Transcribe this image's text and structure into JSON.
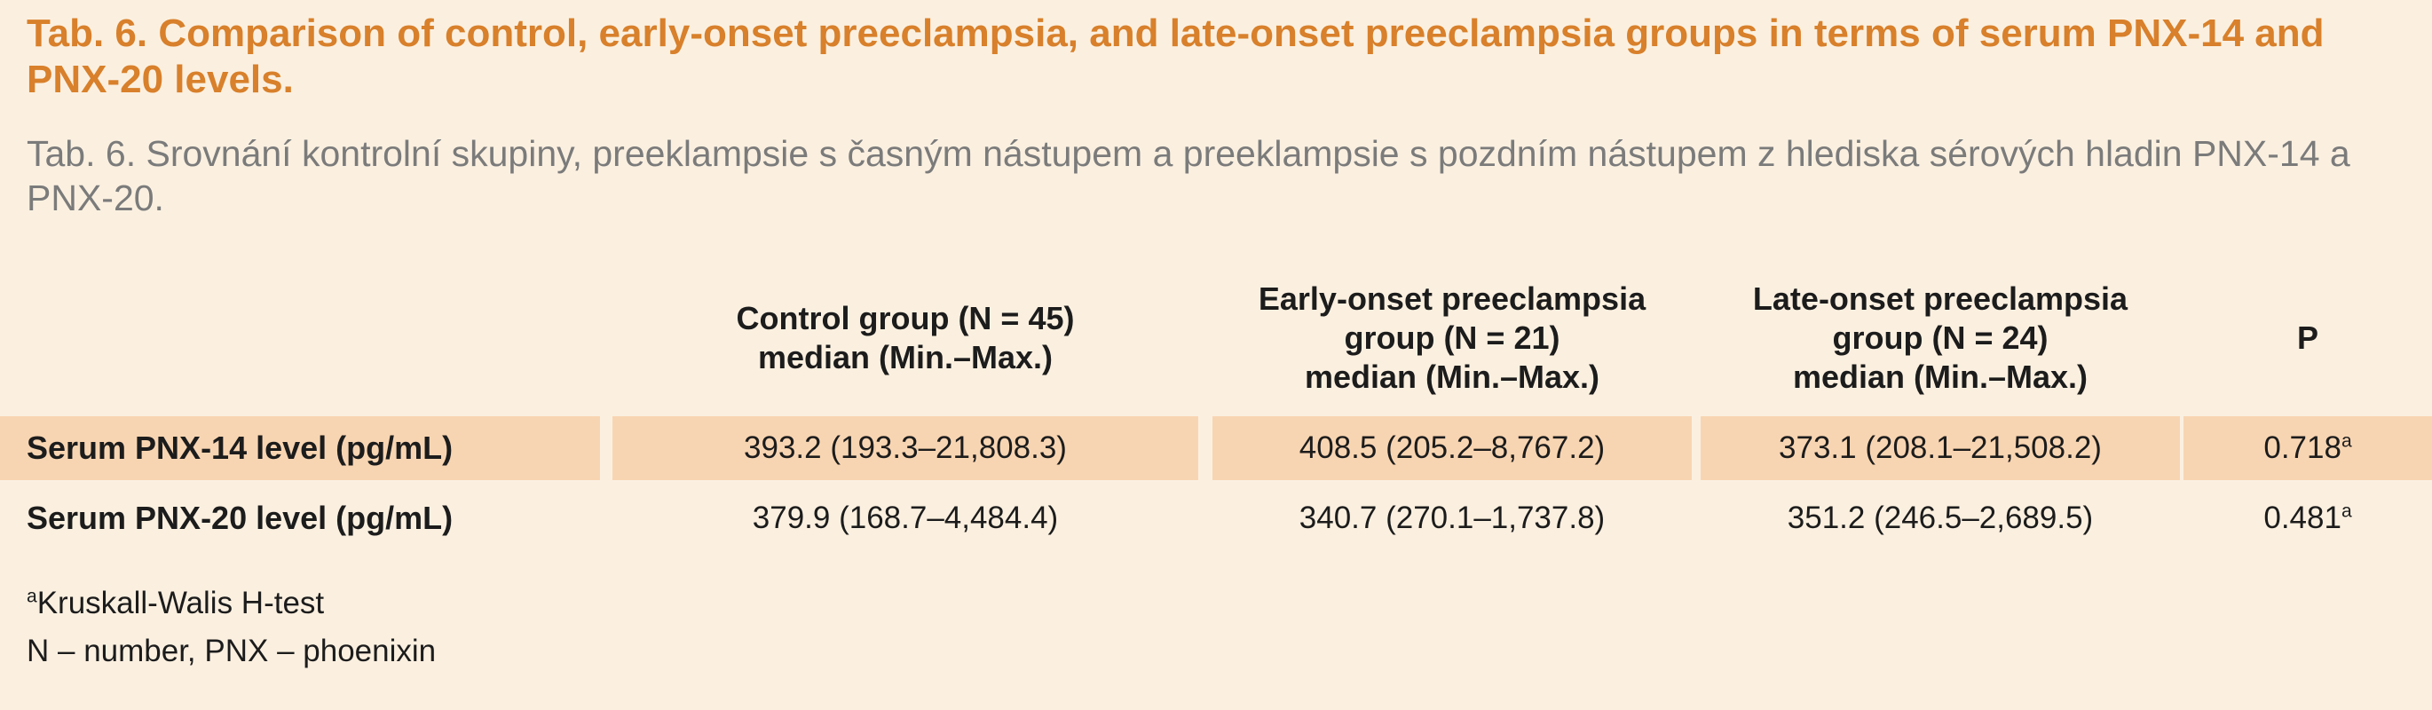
{
  "title": {
    "en": "Tab. 6. Comparison of control, early-onset preeclampsia, and late-onset preeclampsia groups in terms of serum PNX-14 and PNX-20 levels.",
    "cz": "Tab. 6. Srovnání kontrolní skupiny, preeklampsie s časným nástupem a preeklampsie s pozdním nástupem z hlediska sérových hladin PNX-14 a PNX-20."
  },
  "table": {
    "headers": [
      {
        "lines": [
          "Control group (N = 45)",
          "median (Min.–Max.)"
        ]
      },
      {
        "lines": [
          "Early-onset preeclampsia",
          "group (N = 21)",
          "median (Min.–Max.)"
        ]
      },
      {
        "lines": [
          "Late-onset preeclampsia",
          "group (N = 24)",
          "median (Min.–Max.)"
        ]
      },
      {
        "lines": [
          "P"
        ]
      }
    ],
    "rows": [
      {
        "label": "Serum PNX-14 level (pg/mL)",
        "control": "393.2 (193.3–21,808.3)",
        "early": "408.5 (205.2–8,767.2)",
        "late": "373.1 (208.1–21,508.2)",
        "p": "0.718",
        "p_mark": "a"
      },
      {
        "label": "Serum PNX-20 level (pg/mL)",
        "control": "379.9 (168.7–4,484.4)",
        "early": "340.7 (270.1–1,737.8)",
        "late": "351.2 (246.5–2,689.5)",
        "p": "0.481",
        "p_mark": "a"
      }
    ]
  },
  "footnotes": {
    "mark": "a",
    "test": "Kruskall-Walis H-test",
    "abbrev": "N – number, PNX – phoenixin"
  },
  "colors": {
    "background": "#fbf0e0",
    "title": "#d8802b",
    "subtitle": "#7b7b7b",
    "highlight_row": "#f8d5b2"
  }
}
